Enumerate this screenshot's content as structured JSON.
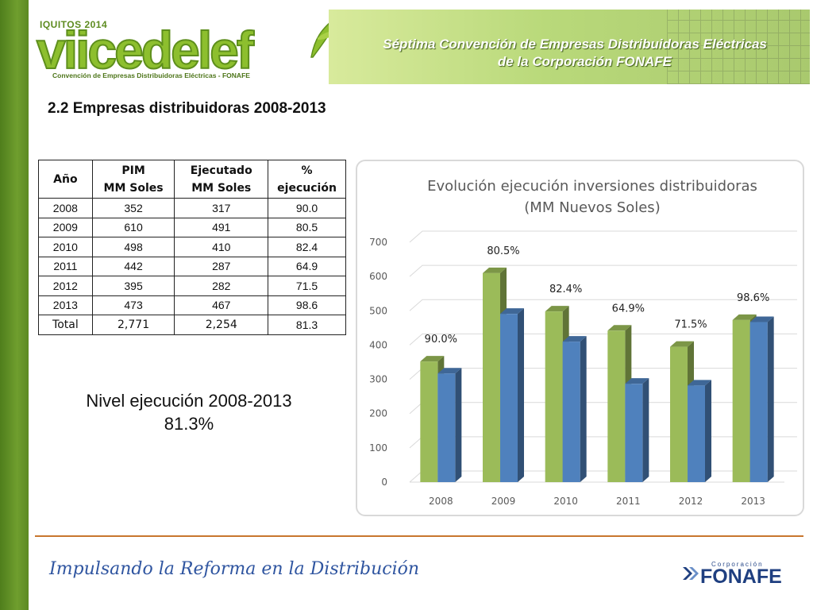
{
  "header": {
    "logo_top": "IQUITOS 2014",
    "logo_main": "viicedelef",
    "logo_sub": "Convención de Empresas Distribuidoras Eléctricas - FONAFE",
    "banner_line1": "Séptima Convención de Empresas Distribuidoras Eléctricas",
    "banner_line2": "de la Corporación FONAFE"
  },
  "section_title": "2.2 Empresas distribuidoras 2008-2013",
  "table": {
    "headers": {
      "year": "Año",
      "pim_1": "PIM",
      "pim_2": "MM Soles",
      "exec_1": "Ejecutado",
      "exec_2": "MM Soles",
      "pct_1": "%",
      "pct_2": "ejecución"
    },
    "rows": [
      {
        "year": "2008",
        "pim": "352",
        "exec": "317",
        "pct": "90.0"
      },
      {
        "year": "2009",
        "pim": "610",
        "exec": "491",
        "pct": "80.5"
      },
      {
        "year": "2010",
        "pim": "498",
        "exec": "410",
        "pct": "82.4"
      },
      {
        "year": "2011",
        "pim": "442",
        "exec": "287",
        "pct": "64.9"
      },
      {
        "year": "2012",
        "pim": "395",
        "exec": "282",
        "pct": "71.5"
      },
      {
        "year": "2013",
        "pim": "473",
        "exec": "467",
        "pct": "98.6"
      }
    ],
    "total": {
      "label": "Total",
      "pim": "2,771",
      "exec": "2,254",
      "pct": "81.3"
    }
  },
  "summary": {
    "line1": "Nivel ejecución 2008-2013",
    "line2": "81.3%"
  },
  "chart_data": {
    "type": "bar",
    "title": "Evolución ejecución inversiones distribuidoras",
    "subtitle": "(MM Nuevos Soles)",
    "categories": [
      "2008",
      "2009",
      "2010",
      "2011",
      "2012",
      "2013"
    ],
    "series": [
      {
        "values": [
          352,
          610,
          498,
          442,
          395,
          473
        ],
        "color": "#9bbb59"
      },
      {
        "values": [
          317,
          491,
          410,
          287,
          282,
          467
        ],
        "color": "#4f81bd"
      }
    ],
    "data_labels": [
      "90.0%",
      "80.5%",
      "82.4%",
      "64.9%",
      "71.5%",
      "98.6%"
    ],
    "yticks": [
      "0",
      "100",
      "200",
      "300",
      "400",
      "500",
      "600",
      "700"
    ],
    "ylim": [
      0,
      700
    ],
    "grid": true
  },
  "footer": {
    "motto": "Impulsando la Reforma en la Distribución",
    "brand_small": "Corporación",
    "brand_big": "FONAFE"
  }
}
